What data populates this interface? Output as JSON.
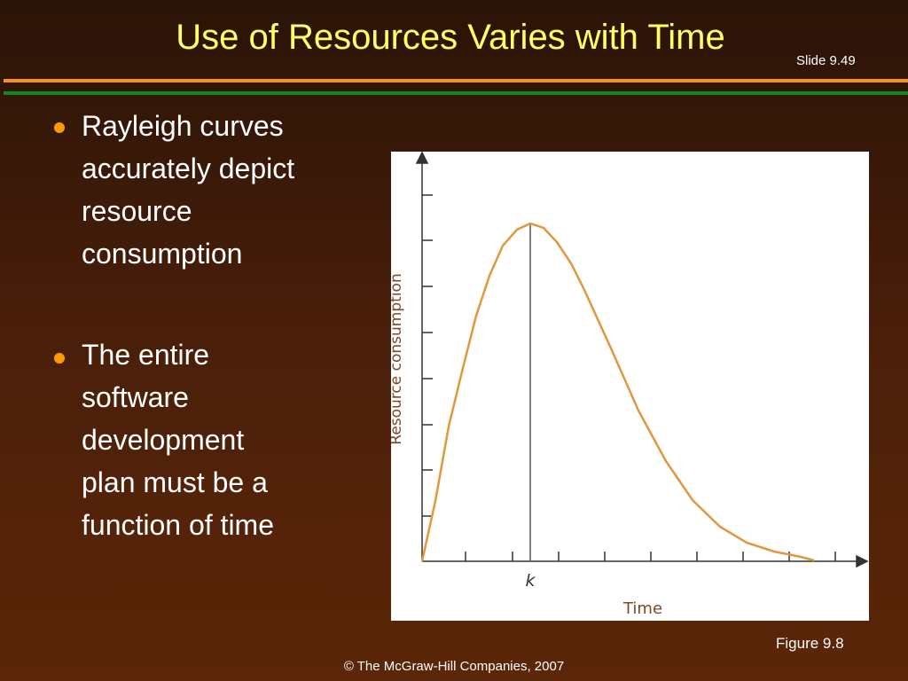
{
  "header": {
    "title": "Use of Resources Varies with Time",
    "slide_number": "Slide 9.49"
  },
  "bullets": [
    {
      "lines": [
        "Rayleigh curves",
        "accurately depict",
        "resource",
        "consumption"
      ]
    },
    {
      "lines": [
        "The entire",
        "software",
        "development",
        "plan must be a",
        "function of time"
      ]
    }
  ],
  "figure": {
    "y_label": "Resource consumption",
    "x_label": "Time",
    "marker": "k",
    "caption": "Figure 9.8"
  },
  "footer": "© The McGraw-Hill Companies, 2007"
}
